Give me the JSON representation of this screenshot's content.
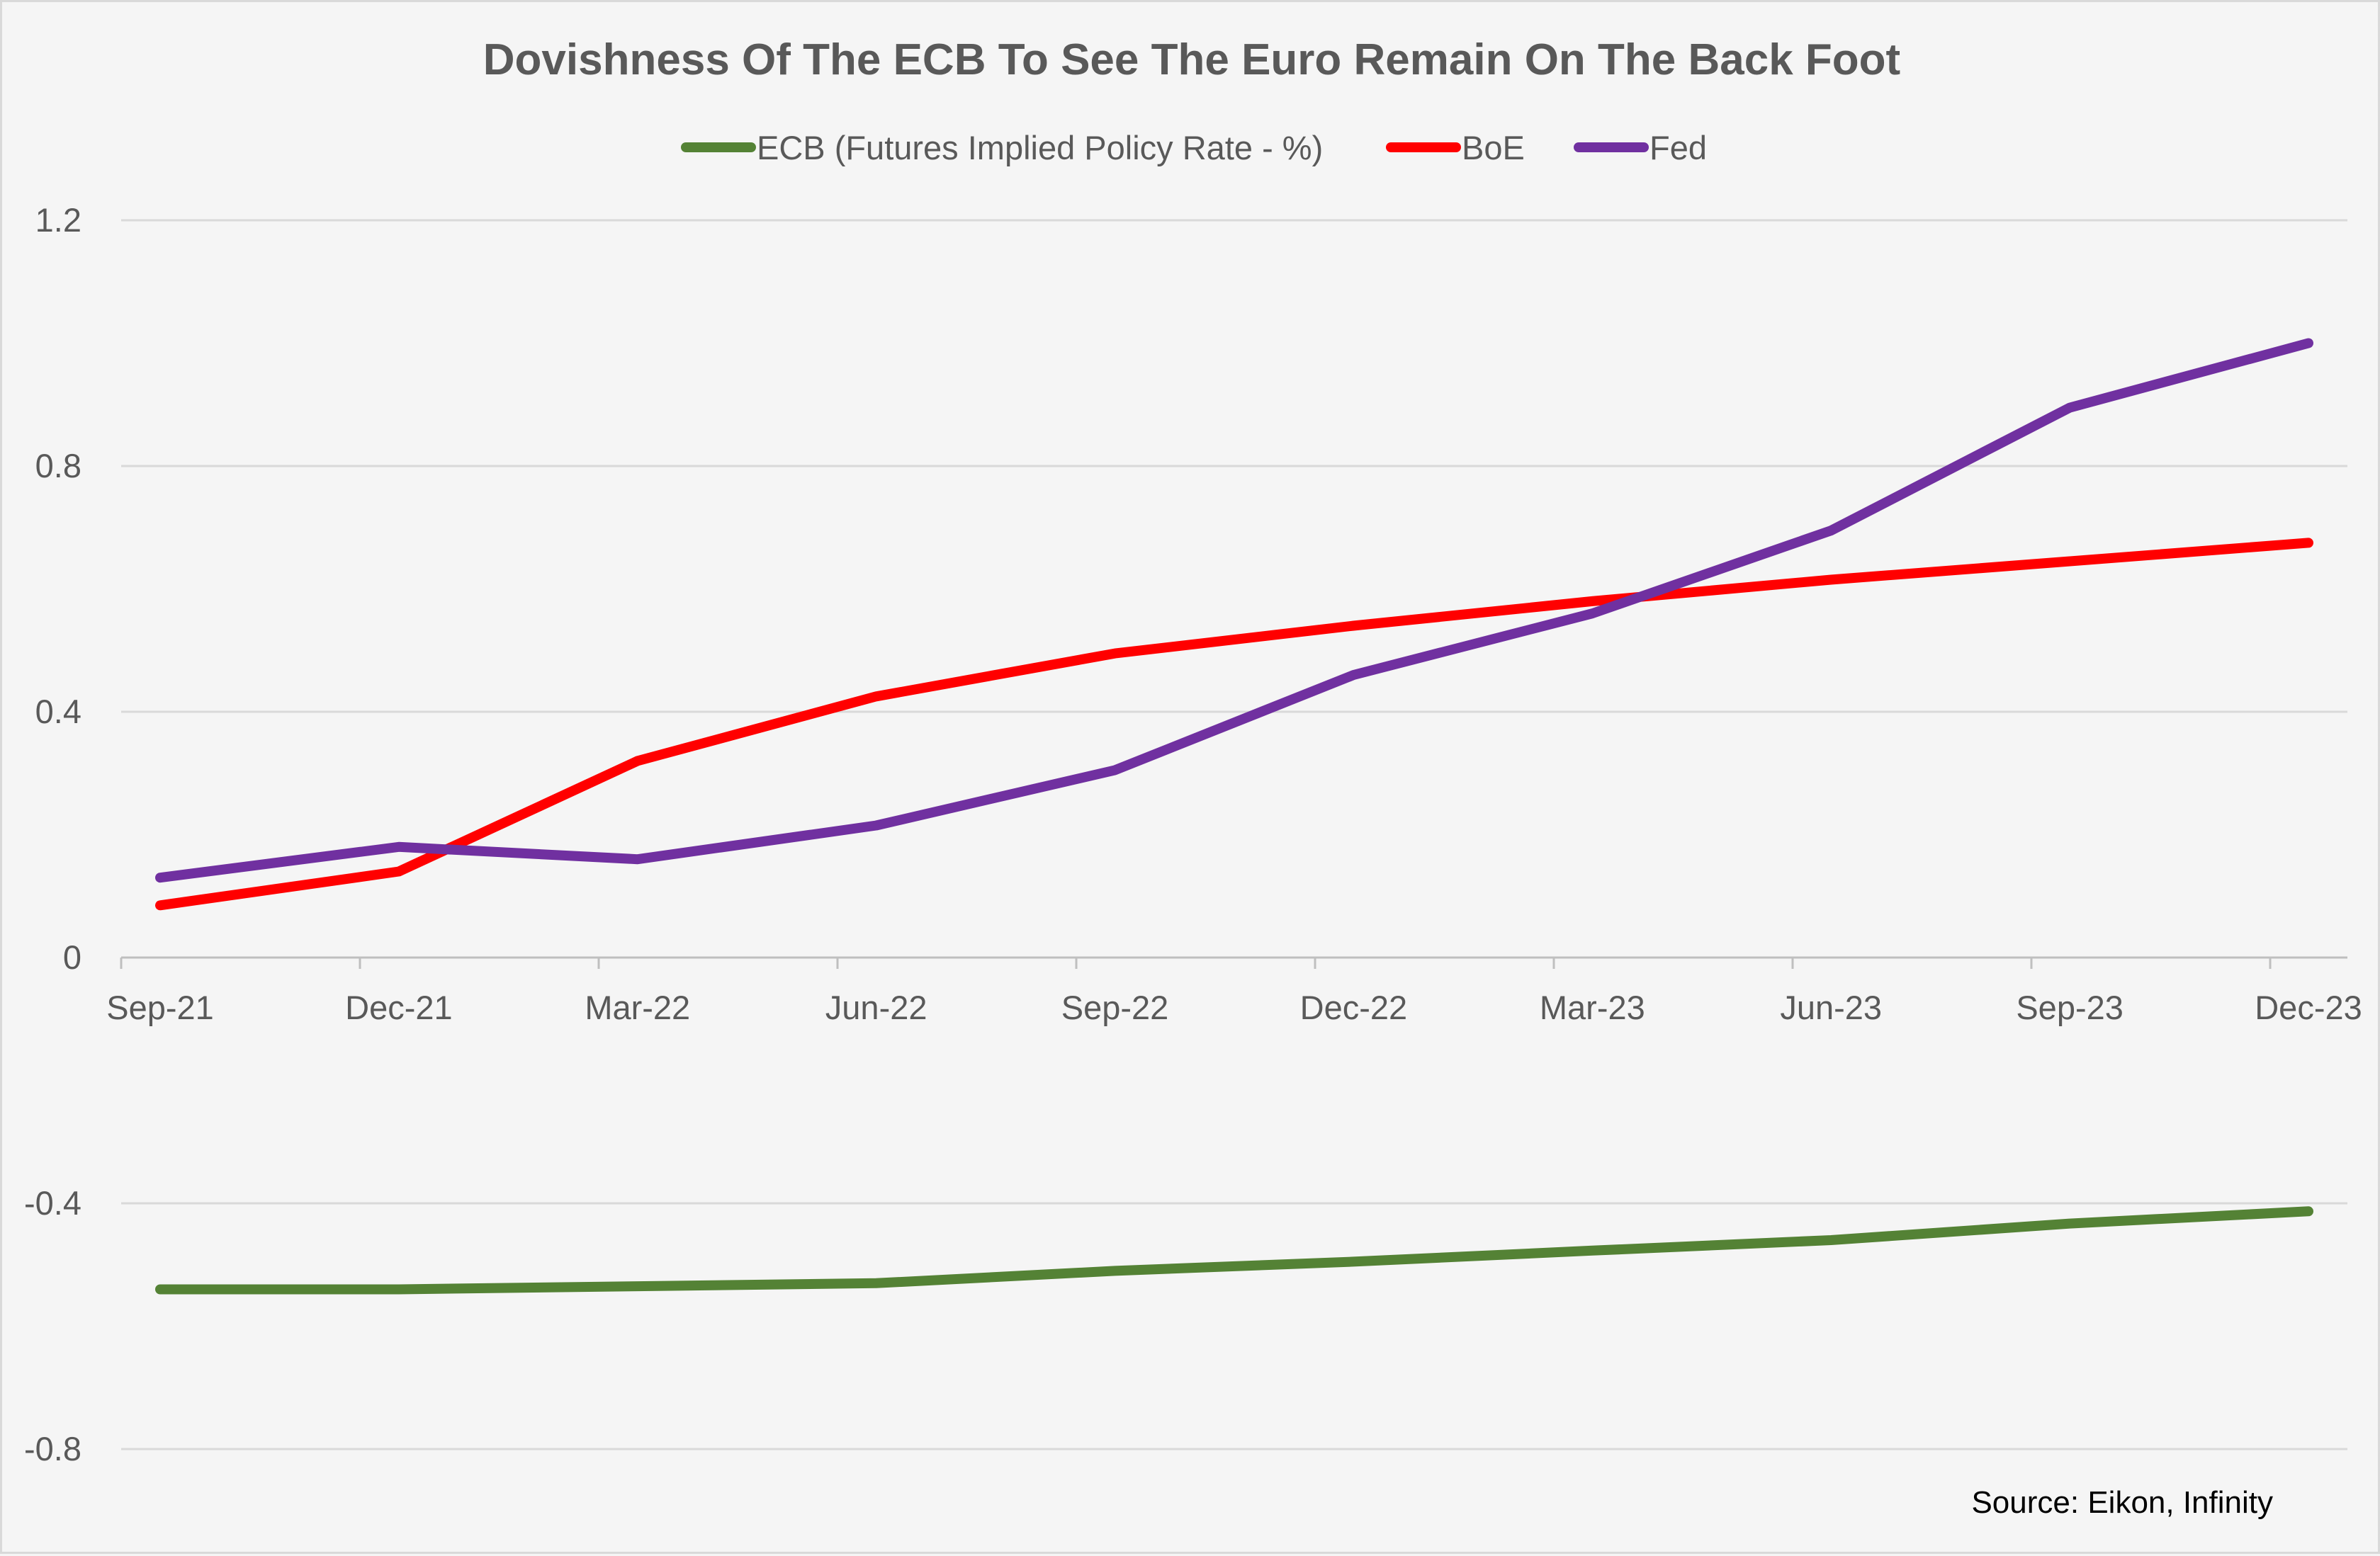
{
  "chart_data": {
    "type": "line",
    "title": "Dovishness Of The ECB To See The Euro Remain On The Back Foot",
    "categories": [
      "Sep-21",
      "Dec-21",
      "Mar-22",
      "Jun-22",
      "Sep-22",
      "Dec-22",
      "Mar-23",
      "Jun-23",
      "Sep-23",
      "Dec-23"
    ],
    "series": [
      {
        "name": "ECB (Futures Implied Policy Rate - %)",
        "color": "#548235",
        "values": [
          -0.54,
          -0.54,
          -0.535,
          -0.53,
          -0.51,
          -0.495,
          -0.477,
          -0.46,
          -0.433,
          -0.413
        ]
      },
      {
        "name": "BoE",
        "color": "#ff0000",
        "values": [
          0.085,
          0.14,
          0.32,
          0.425,
          0.495,
          0.54,
          0.58,
          0.615,
          0.645,
          0.675
        ]
      },
      {
        "name": "Fed",
        "color": "#7030a0",
        "values": [
          0.13,
          0.18,
          0.16,
          0.215,
          0.305,
          0.46,
          0.56,
          0.695,
          0.895,
          1.0
        ]
      }
    ],
    "y_ticks": [
      "1.2",
      "0.8",
      "0.4",
      "0",
      "-0.4",
      "-0.8"
    ],
    "ylim": [
      -0.8,
      1.2
    ],
    "grid": true,
    "legend_position": "top-center",
    "source": "Source: Eikon, Infinity"
  }
}
